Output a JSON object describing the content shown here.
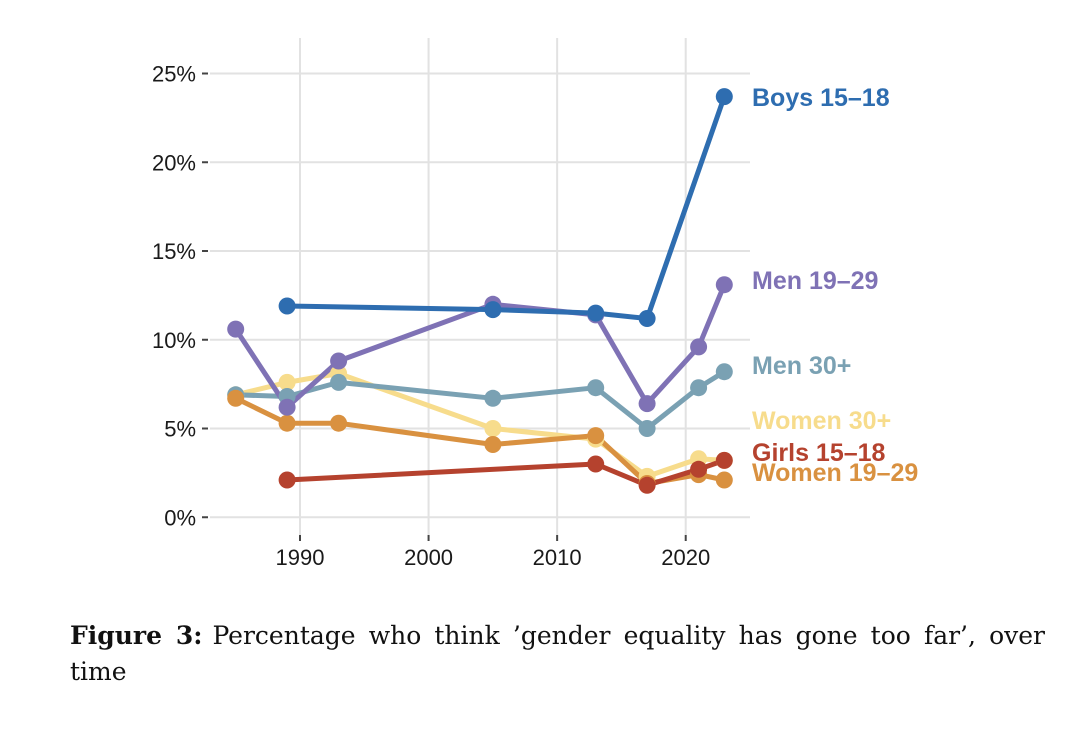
{
  "chart_data": {
    "type": "line",
    "x_range": [
      1983,
      2025
    ],
    "ylim": [
      -1,
      27
    ],
    "x_ticks": [
      1990,
      2000,
      2010,
      2020
    ],
    "x_tick_labels": [
      "1990",
      "2000",
      "2010",
      "2020"
    ],
    "y_ticks": [
      0,
      5,
      10,
      15,
      20,
      25
    ],
    "y_tick_labels": [
      "0%",
      "5%",
      "10%",
      "15%",
      "20%",
      "25%"
    ],
    "grid": true,
    "series": [
      {
        "name": "Women 30+",
        "color": "#f7dc8c",
        "points": [
          [
            1985,
            6.9
          ],
          [
            1989,
            7.6
          ],
          [
            1993,
            8.1
          ],
          [
            2005,
            5.0
          ],
          [
            2013,
            4.4
          ],
          [
            2017,
            2.3
          ],
          [
            2021,
            3.3
          ],
          [
            2023,
            3.2
          ]
        ]
      },
      {
        "name": "Men 30+",
        "color": "#7aa1b3",
        "points": [
          [
            1985,
            6.9
          ],
          [
            1989,
            6.8
          ],
          [
            1993,
            7.6
          ],
          [
            2005,
            6.7
          ],
          [
            2013,
            7.3
          ],
          [
            2017,
            5.0
          ],
          [
            2021,
            7.3
          ],
          [
            2023,
            8.2
          ]
        ]
      },
      {
        "name": "Women 19–29",
        "color": "#d99140",
        "points": [
          [
            1985,
            6.7
          ],
          [
            1989,
            5.3
          ],
          [
            1993,
            5.3
          ],
          [
            2005,
            4.1
          ],
          [
            2013,
            4.6
          ],
          [
            2017,
            1.9
          ],
          [
            2021,
            2.4
          ],
          [
            2023,
            2.1
          ]
        ]
      },
      {
        "name": "Girls 15–18",
        "color": "#b5422e",
        "points": [
          [
            1989,
            2.1
          ],
          [
            2013,
            3.0
          ],
          [
            2017,
            1.8
          ],
          [
            2021,
            2.7
          ],
          [
            2023,
            3.2
          ]
        ]
      },
      {
        "name": "Men 19–29",
        "color": "#7f72b5",
        "points": [
          [
            1985,
            10.6
          ],
          [
            1989,
            6.2
          ],
          [
            1993,
            8.8
          ],
          [
            2005,
            12.0
          ],
          [
            2013,
            11.4
          ],
          [
            2017,
            6.4
          ],
          [
            2021,
            9.6
          ],
          [
            2023,
            13.1
          ]
        ]
      },
      {
        "name": "Boys 15–18",
        "color": "#2e6db0",
        "points": [
          [
            1989,
            11.9
          ],
          [
            2005,
            11.7
          ],
          [
            2013,
            11.5
          ],
          [
            2017,
            11.2
          ],
          [
            2023,
            23.7
          ]
        ]
      }
    ],
    "end_labels": [
      {
        "text": "Boys 15–18",
        "color": "#2e6db0",
        "y": 23.7
      },
      {
        "text": "Men 19–29",
        "color": "#7f72b5",
        "y": 13.1
      },
      {
        "text": "Men 30+",
        "color": "#7aa1b3",
        "y": 8.2
      },
      {
        "text": "Women 30+",
        "color": "#f7dc8c",
        "y": 5.0
      },
      {
        "text": "Girls 15–18",
        "color": "#b5422e",
        "y": 3.2
      },
      {
        "text": "Women 19–29",
        "color": "#d99140",
        "y": 2.1
      }
    ]
  },
  "caption": {
    "label": "Figure 3:",
    "text": "Percentage who think ’gender equality has gone too far’, over time"
  }
}
